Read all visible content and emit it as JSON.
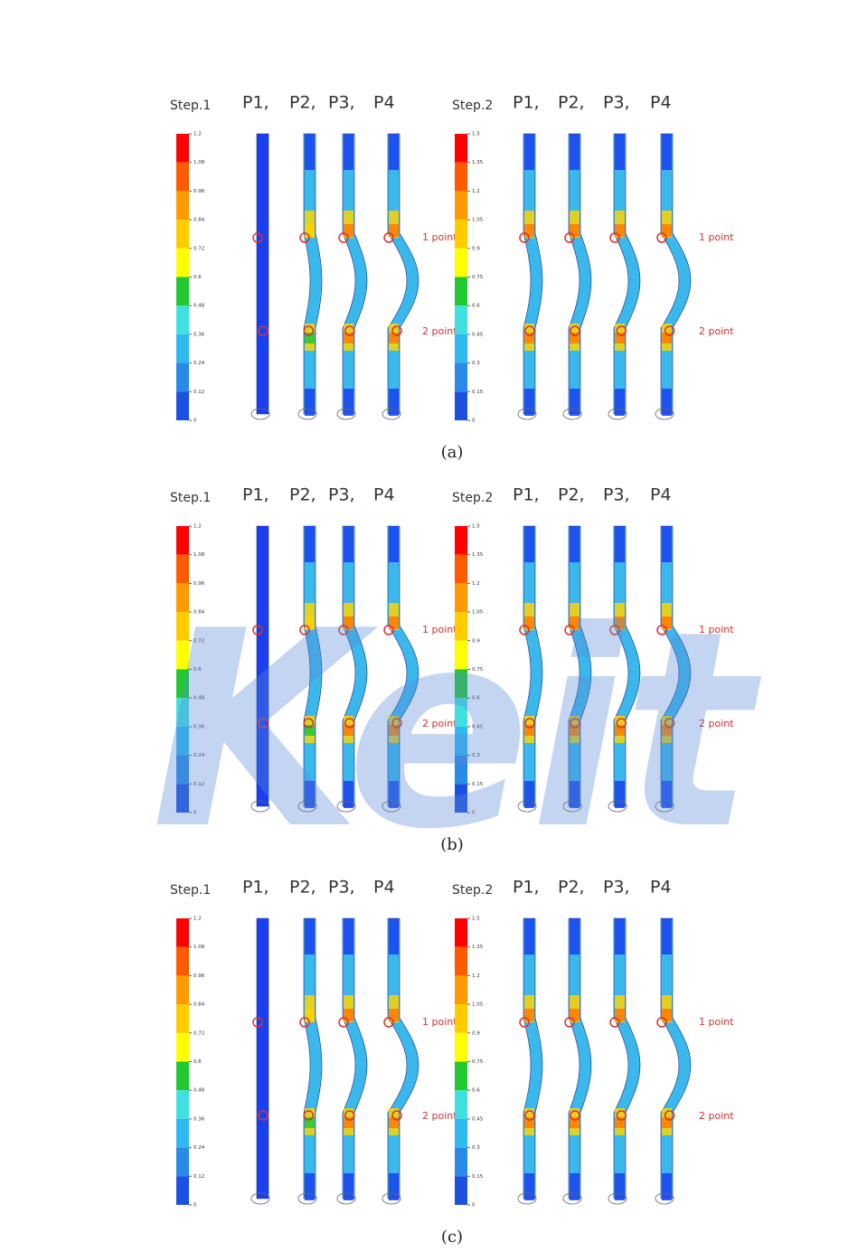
{
  "panels": [
    {
      "caption": "(a)",
      "step1": {
        "title": "Step.1",
        "ticks": [
          "1.2",
          "1.08",
          "0.96",
          "0.84",
          "0.72",
          "0.6",
          "0.48",
          "0.36",
          "0.24",
          "0.12",
          "0"
        ],
        "labels": [
          "P1,",
          "P2,",
          "P3,",
          "P4"
        ]
      },
      "step2": {
        "title": "Step.2",
        "ticks": [
          "1.5",
          "1.35",
          "1.2",
          "1.05",
          "0.9",
          "0.75",
          "0.6",
          "0.45",
          "0.3",
          "0.15",
          "0"
        ],
        "labels": [
          "P1,",
          "P2,",
          "P3,",
          "P4"
        ]
      },
      "point_labels": [
        "1 point",
        "2 point"
      ]
    },
    {
      "caption": "(b)",
      "step1": {
        "title": "Step.1",
        "ticks": [
          "1.2",
          "1.08",
          "0.96",
          "0.84",
          "0.72",
          "0.6",
          "0.48",
          "0.36",
          "0.24",
          "0.12",
          "0"
        ],
        "labels": [
          "P1,",
          "P2,",
          "P3,",
          "P4"
        ]
      },
      "step2": {
        "title": "Step.2",
        "ticks": [
          "1.5",
          "1.35",
          "1.2",
          "1.05",
          "0.9",
          "0.75",
          "0.6",
          "0.45",
          "0.3",
          "0.15",
          "0"
        ],
        "labels": [
          "P1,",
          "P2,",
          "P3,",
          "P4"
        ]
      },
      "point_labels": [
        "1 point",
        "2 point"
      ]
    },
    {
      "caption": "(c)",
      "step1": {
        "title": "Step.1",
        "ticks": [
          "1.2",
          "1.08",
          "0.96",
          "0.84",
          "0.72",
          "0.6",
          "0.48",
          "0.36",
          "0.24",
          "0.12",
          "0"
        ],
        "labels": [
          "P1,",
          "P2,",
          "P3,",
          "P4"
        ]
      },
      "step2": {
        "title": "Step.2",
        "ticks": [
          "1.5",
          "1.35",
          "1.2",
          "1.05",
          "0.9",
          "0.75",
          "0.6",
          "0.45",
          "0.3",
          "0.15",
          "0"
        ],
        "labels": [
          "P1,",
          "P2,",
          "P3,",
          "P4"
        ]
      },
      "point_labels": [
        "1 point",
        "2 point"
      ]
    }
  ],
  "watermark": "Keit"
}
